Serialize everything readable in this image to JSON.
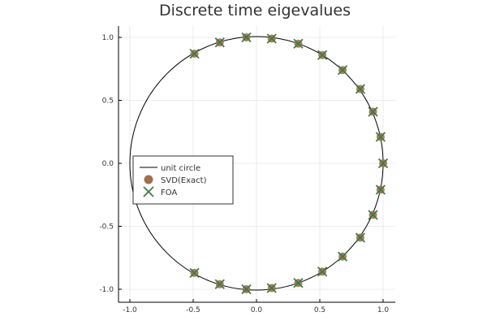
{
  "chart_data": {
    "type": "scatter",
    "title": "Discrete time eigevalues",
    "xlabel": "",
    "ylabel": "",
    "xlim": [
      -1.1,
      1.1
    ],
    "ylim": [
      -1.1,
      1.1
    ],
    "xticks": [
      -1.0,
      -0.5,
      0.0,
      0.5,
      1.0
    ],
    "yticks": [
      -1.0,
      -0.5,
      0.0,
      0.5,
      1.0
    ],
    "xtick_labels": [
      "-1.0",
      "-0.5",
      "0.0",
      "0.5",
      "1.0"
    ],
    "ytick_labels": [
      "-1.0",
      "-0.5",
      "0.0",
      "0.5",
      "1.0"
    ],
    "grid": true,
    "aspect": "equal",
    "legend_position": "left-middle",
    "series": [
      {
        "name": "unit circle",
        "kind": "line",
        "color": "#000000",
        "x": [],
        "y": []
      },
      {
        "name": "SVD(Exact)",
        "kind": "scatter-circle",
        "color": "#a0704f",
        "x": [
          -0.49,
          -0.29,
          -0.08,
          0.12,
          0.33,
          0.52,
          0.68,
          0.82,
          0.92,
          0.98,
          1.0,
          0.98,
          0.92,
          0.82,
          0.68,
          0.52,
          0.33,
          0.12,
          -0.08,
          -0.29,
          -0.49
        ],
        "y": [
          0.87,
          0.96,
          1.0,
          0.99,
          0.95,
          0.86,
          0.74,
          0.59,
          0.41,
          0.21,
          0.0,
          -0.21,
          -0.41,
          -0.59,
          -0.74,
          -0.86,
          -0.95,
          -0.99,
          -1.0,
          -0.96,
          -0.87
        ]
      },
      {
        "name": "FOA",
        "kind": "scatter-x",
        "color": "#3e7a46",
        "x": [
          -0.49,
          -0.29,
          -0.08,
          0.12,
          0.33,
          0.52,
          0.68,
          0.82,
          0.92,
          0.98,
          1.0,
          0.98,
          0.92,
          0.82,
          0.68,
          0.52,
          0.33,
          0.12,
          -0.08,
          -0.29,
          -0.49
        ],
        "y": [
          0.87,
          0.96,
          1.0,
          0.99,
          0.95,
          0.86,
          0.74,
          0.59,
          0.41,
          0.21,
          0.0,
          -0.21,
          -0.41,
          -0.59,
          -0.74,
          -0.86,
          -0.95,
          -0.99,
          -1.0,
          -0.96,
          -0.87
        ]
      }
    ]
  }
}
